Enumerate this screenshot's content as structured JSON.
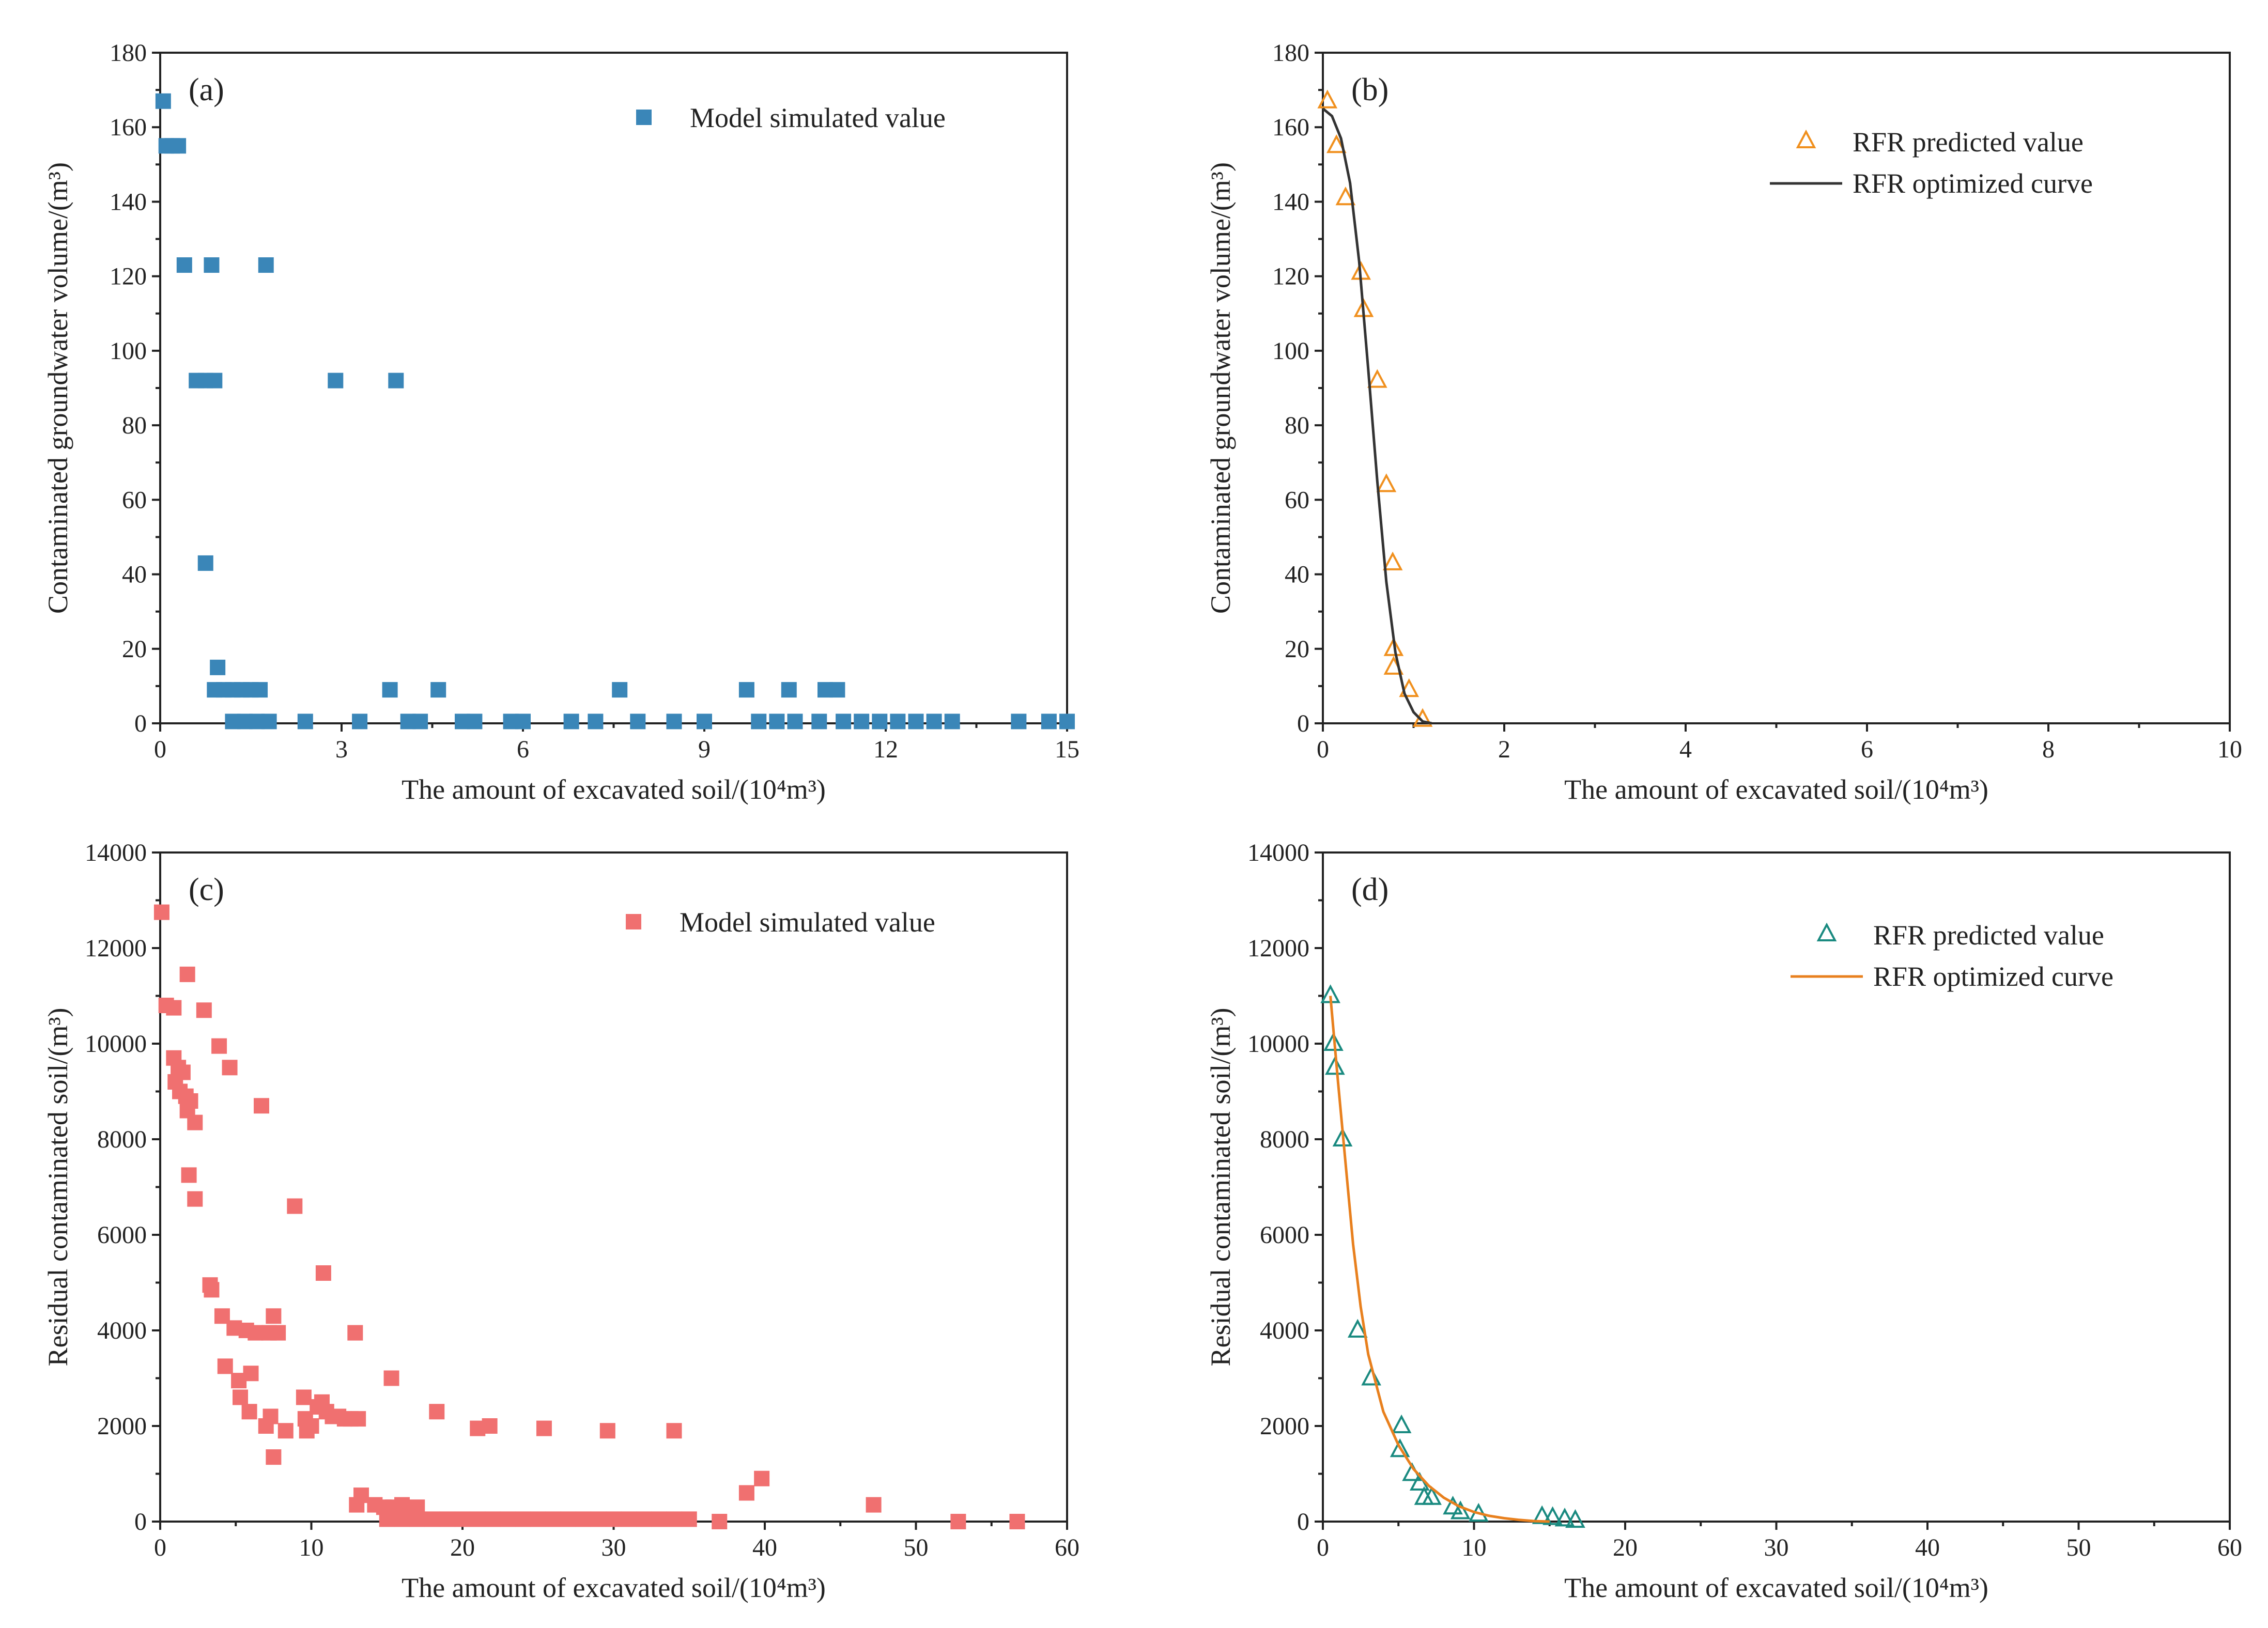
{
  "figure": {
    "panels": [
      {
        "id": "a",
        "label": "(a)",
        "xlabel": "The amount of excavated soil/(10⁴m³)",
        "ylabel": "Contaminated groundwater volume/(m³)",
        "legend": [
          {
            "kind": "square",
            "text": "Model simulated value",
            "color": "#3a86b8"
          }
        ]
      },
      {
        "id": "b",
        "label": "(b)",
        "xlabel": "The amount of excavated soil/(10⁴m³)",
        "ylabel": "Contaminated groundwater volume/(m³)",
        "legend": [
          {
            "kind": "triangle",
            "text": "RFR predicted value",
            "color": "#f0901e"
          },
          {
            "kind": "line",
            "text": "RFR optimized curve",
            "color": "#333333"
          }
        ]
      },
      {
        "id": "c",
        "label": "(c)",
        "xlabel": "The amount of excavated soil/(10⁴m³)",
        "ylabel": "Residual contaminated soil/(m³)",
        "legend": [
          {
            "kind": "square",
            "text": "Model simulated value",
            "color": "#f07070"
          }
        ]
      },
      {
        "id": "d",
        "label": "(d)",
        "xlabel": "The amount of excavated soil/(10⁴m³)",
        "ylabel": "Residual contaminated soil/(m³)",
        "legend": [
          {
            "kind": "triangle",
            "text": "RFR predicted value",
            "color": "#1a8a80"
          },
          {
            "kind": "line",
            "text": "RFR optimized curve",
            "color": "#e8801e"
          }
        ]
      }
    ]
  },
  "chart_data": [
    {
      "panel": "a",
      "type": "scatter",
      "title": "(a)",
      "xlabel": "The amount of excavated soil/(10⁴m³)",
      "ylabel": "Contaminated groundwater volume/(m³)",
      "xlim": [
        0,
        15
      ],
      "ylim": [
        0,
        180
      ],
      "xticks": [
        0,
        3,
        6,
        9,
        12,
        15
      ],
      "yticks": [
        0,
        20,
        40,
        60,
        80,
        100,
        120,
        140,
        160,
        180
      ],
      "legend_position": "top-right",
      "series": [
        {
          "name": "Model simulated value",
          "marker": "square",
          "color": "#3a86b8",
          "points": [
            [
              0.05,
              167
            ],
            [
              0.1,
              155
            ],
            [
              0.2,
              155
            ],
            [
              0.3,
              155
            ],
            [
              0.4,
              123
            ],
            [
              0.85,
              123
            ],
            [
              1.75,
              123
            ],
            [
              0.6,
              92
            ],
            [
              0.75,
              92
            ],
            [
              0.9,
              92
            ],
            [
              2.9,
              92
            ],
            [
              3.9,
              92
            ],
            [
              0.75,
              43
            ],
            [
              0.95,
              15
            ],
            [
              0.9,
              9
            ],
            [
              1.05,
              9
            ],
            [
              1.2,
              9
            ],
            [
              1.35,
              9
            ],
            [
              1.5,
              9
            ],
            [
              1.65,
              9
            ],
            [
              3.8,
              9
            ],
            [
              4.6,
              9
            ],
            [
              7.6,
              9
            ],
            [
              9.7,
              9
            ],
            [
              10.4,
              9
            ],
            [
              11.0,
              9
            ],
            [
              11.2,
              9
            ],
            [
              1.2,
              0.5
            ],
            [
              1.4,
              0.5
            ],
            [
              1.6,
              0.5
            ],
            [
              1.8,
              0.5
            ],
            [
              2.4,
              0.5
            ],
            [
              3.3,
              0.5
            ],
            [
              4.1,
              0.5
            ],
            [
              4.3,
              0.5
            ],
            [
              5.0,
              0.5
            ],
            [
              5.2,
              0.5
            ],
            [
              5.8,
              0.5
            ],
            [
              6.0,
              0.5
            ],
            [
              6.8,
              0.5
            ],
            [
              7.2,
              0.5
            ],
            [
              7.9,
              0.5
            ],
            [
              8.5,
              0.5
            ],
            [
              9.0,
              0.5
            ],
            [
              9.9,
              0.5
            ],
            [
              10.2,
              0.5
            ],
            [
              10.5,
              0.5
            ],
            [
              10.9,
              0.5
            ],
            [
              11.3,
              0.5
            ],
            [
              11.6,
              0.5
            ],
            [
              11.9,
              0.5
            ],
            [
              12.2,
              0.5
            ],
            [
              12.5,
              0.5
            ],
            [
              12.8,
              0.5
            ],
            [
              13.1,
              0.5
            ],
            [
              14.2,
              0.5
            ],
            [
              14.7,
              0.5
            ],
            [
              15.0,
              0.5
            ]
          ]
        }
      ]
    },
    {
      "panel": "b",
      "type": "scatter",
      "title": "(b)",
      "xlabel": "The amount of excavated soil/(10⁴m³)",
      "ylabel": "Contaminated groundwater volume/(m³)",
      "xlim": [
        0,
        10
      ],
      "ylim": [
        0,
        180
      ],
      "xticks": [
        0,
        2,
        4,
        6,
        8,
        10
      ],
      "yticks": [
        0,
        20,
        40,
        60,
        80,
        100,
        120,
        140,
        160,
        180
      ],
      "legend_position": "top-right",
      "series": [
        {
          "name": "RFR predicted value",
          "marker": "triangle",
          "color": "#f0901e",
          "points": [
            [
              0.05,
              167
            ],
            [
              0.15,
              155
            ],
            [
              0.25,
              141
            ],
            [
              0.42,
              121
            ],
            [
              0.45,
              111
            ],
            [
              0.6,
              92
            ],
            [
              0.7,
              64
            ],
            [
              0.77,
              43
            ],
            [
              0.78,
              20
            ],
            [
              0.78,
              15
            ],
            [
              0.95,
              9
            ],
            [
              1.1,
              1
            ]
          ]
        },
        {
          "name": "RFR optimized curve",
          "marker": "line",
          "color": "#333333",
          "points": [
            [
              0,
              165
            ],
            [
              0.1,
              163
            ],
            [
              0.2,
              157
            ],
            [
              0.3,
              145
            ],
            [
              0.4,
              124
            ],
            [
              0.5,
              95
            ],
            [
              0.6,
              65
            ],
            [
              0.7,
              38
            ],
            [
              0.8,
              19
            ],
            [
              0.9,
              8
            ],
            [
              1.0,
              3
            ],
            [
              1.1,
              0.5
            ],
            [
              1.2,
              0
            ]
          ]
        }
      ]
    },
    {
      "panel": "c",
      "type": "scatter",
      "title": "(c)",
      "xlabel": "The amount of excavated soil/(10⁴m³)",
      "ylabel": "Residual contaminated soil/(m³)",
      "xlim": [
        0,
        60
      ],
      "ylim": [
        0,
        14000
      ],
      "xticks": [
        0,
        10,
        20,
        30,
        40,
        50,
        60
      ],
      "yticks": [
        0,
        2000,
        4000,
        6000,
        8000,
        10000,
        12000,
        14000
      ],
      "legend_position": "top-right",
      "series": [
        {
          "name": "Model simulated value",
          "marker": "square",
          "color": "#f07070",
          "points": [
            [
              0.1,
              12750
            ],
            [
              0.4,
              10800
            ],
            [
              0.9,
              10750
            ],
            [
              1.8,
              11450
            ],
            [
              2.9,
              10700
            ],
            [
              3.9,
              9950
            ],
            [
              4.6,
              9500
            ],
            [
              6.7,
              8700
            ],
            [
              8.9,
              6600
            ],
            [
              0.9,
              9700
            ],
            [
              1.2,
              9500
            ],
            [
              1.5,
              9400
            ],
            [
              1.0,
              9200
            ],
            [
              1.3,
              9000
            ],
            [
              1.7,
              8900
            ],
            [
              2.0,
              8800
            ],
            [
              1.8,
              8600
            ],
            [
              2.3,
              8350
            ],
            [
              1.9,
              7250
            ],
            [
              2.3,
              6750
            ],
            [
              3.3,
              4950
            ],
            [
              3.4,
              4850
            ],
            [
              4.1,
              4300
            ],
            [
              4.9,
              4050
            ],
            [
              5.7,
              4000
            ],
            [
              6.3,
              3950
            ],
            [
              7.2,
              3950
            ],
            [
              7.8,
              3950
            ],
            [
              7.5,
              4300
            ],
            [
              12.9,
              3950
            ],
            [
              10.8,
              5200
            ],
            [
              4.3,
              3250
            ],
            [
              5.2,
              2950
            ],
            [
              6.0,
              3100
            ],
            [
              5.3,
              2600
            ],
            [
              5.9,
              2300
            ],
            [
              7.0,
              2000
            ],
            [
              7.3,
              2200
            ],
            [
              7.5,
              1350
            ],
            [
              8.3,
              1900
            ],
            [
              9.5,
              2600
            ],
            [
              9.6,
              2150
            ],
            [
              9.7,
              1900
            ],
            [
              10.0,
              2000
            ],
            [
              10.4,
              2400
            ],
            [
              10.7,
              2500
            ],
            [
              11.0,
              2300
            ],
            [
              11.4,
              2200
            ],
            [
              11.8,
              2200
            ],
            [
              12.2,
              2150
            ],
            [
              12.6,
              2150
            ],
            [
              13.1,
              2150
            ],
            [
              15.3,
              3000
            ],
            [
              18.3,
              2300
            ],
            [
              21.0,
              1950
            ],
            [
              21.8,
              2000
            ],
            [
              25.4,
              1950
            ],
            [
              29.6,
              1900
            ],
            [
              34.0,
              1900
            ],
            [
              13.0,
              350
            ],
            [
              13.3,
              550
            ],
            [
              14.2,
              350
            ],
            [
              14.8,
              300
            ],
            [
              15.4,
              300
            ],
            [
              16.0,
              350
            ],
            [
              16.5,
              250
            ],
            [
              17.0,
              300
            ],
            [
              15.1,
              150
            ],
            [
              16.2,
              150
            ],
            [
              15.0,
              50
            ],
            [
              16.0,
              50
            ],
            [
              17.0,
              50
            ],
            [
              18.0,
              50
            ],
            [
              19.0,
              50
            ],
            [
              20.0,
              50
            ],
            [
              21.0,
              50
            ],
            [
              22.0,
              50
            ],
            [
              23.0,
              50
            ],
            [
              24.0,
              50
            ],
            [
              25.0,
              50
            ],
            [
              26.0,
              50
            ],
            [
              27.0,
              50
            ],
            [
              28.0,
              50
            ],
            [
              29.0,
              50
            ],
            [
              30.0,
              50
            ],
            [
              31.0,
              50
            ],
            [
              32.0,
              50
            ],
            [
              33.0,
              50
            ],
            [
              34.0,
              50
            ],
            [
              35.0,
              50
            ],
            [
              37.0,
              0
            ],
            [
              38.8,
              600
            ],
            [
              39.8,
              900
            ],
            [
              47.2,
              350
            ],
            [
              52.8,
              0
            ],
            [
              56.7,
              0
            ]
          ]
        }
      ]
    },
    {
      "panel": "d",
      "type": "scatter",
      "title": "(d)",
      "xlabel": "The amount of excavated soil/(10⁴m³)",
      "ylabel": "Residual contaminated soil/(m³)",
      "xlim": [
        0,
        60
      ],
      "ylim": [
        0,
        14000
      ],
      "xticks": [
        0,
        10,
        20,
        30,
        40,
        50,
        60
      ],
      "yticks": [
        0,
        2000,
        4000,
        6000,
        8000,
        10000,
        12000,
        14000
      ],
      "legend_position": "top-right",
      "series": [
        {
          "name": "RFR predicted value",
          "marker": "triangle",
          "color": "#1a8a80",
          "points": [
            [
              0.5,
              11000
            ],
            [
              0.7,
              10000
            ],
            [
              0.8,
              9500
            ],
            [
              1.3,
              8000
            ],
            [
              2.3,
              4000
            ],
            [
              3.2,
              3000
            ],
            [
              5.2,
              2000
            ],
            [
              5.1,
              1500
            ],
            [
              5.9,
              1000
            ],
            [
              6.4,
              800
            ],
            [
              6.7,
              500
            ],
            [
              7.2,
              500
            ],
            [
              8.6,
              300
            ],
            [
              9.1,
              200
            ],
            [
              10.3,
              150
            ],
            [
              14.5,
              100
            ],
            [
              15.2,
              80
            ],
            [
              16.0,
              50
            ],
            [
              16.7,
              20
            ]
          ]
        },
        {
          "name": "RFR optimized curve",
          "marker": "line",
          "color": "#e8801e",
          "points": [
            [
              0.5,
              11000
            ],
            [
              1.0,
              9200
            ],
            [
              1.5,
              7500
            ],
            [
              2.0,
              5800
            ],
            [
              2.5,
              4500
            ],
            [
              3.0,
              3500
            ],
            [
              4.0,
              2300
            ],
            [
              5.0,
              1600
            ],
            [
              6.0,
              1100
            ],
            [
              7.0,
              750
            ],
            [
              8.0,
              500
            ],
            [
              9.0,
              320
            ],
            [
              10.0,
              200
            ],
            [
              11.0,
              120
            ],
            [
              12.0,
              70
            ],
            [
              13.0,
              35
            ],
            [
              14.0,
              10
            ],
            [
              15.0,
              0
            ]
          ]
        }
      ]
    }
  ]
}
